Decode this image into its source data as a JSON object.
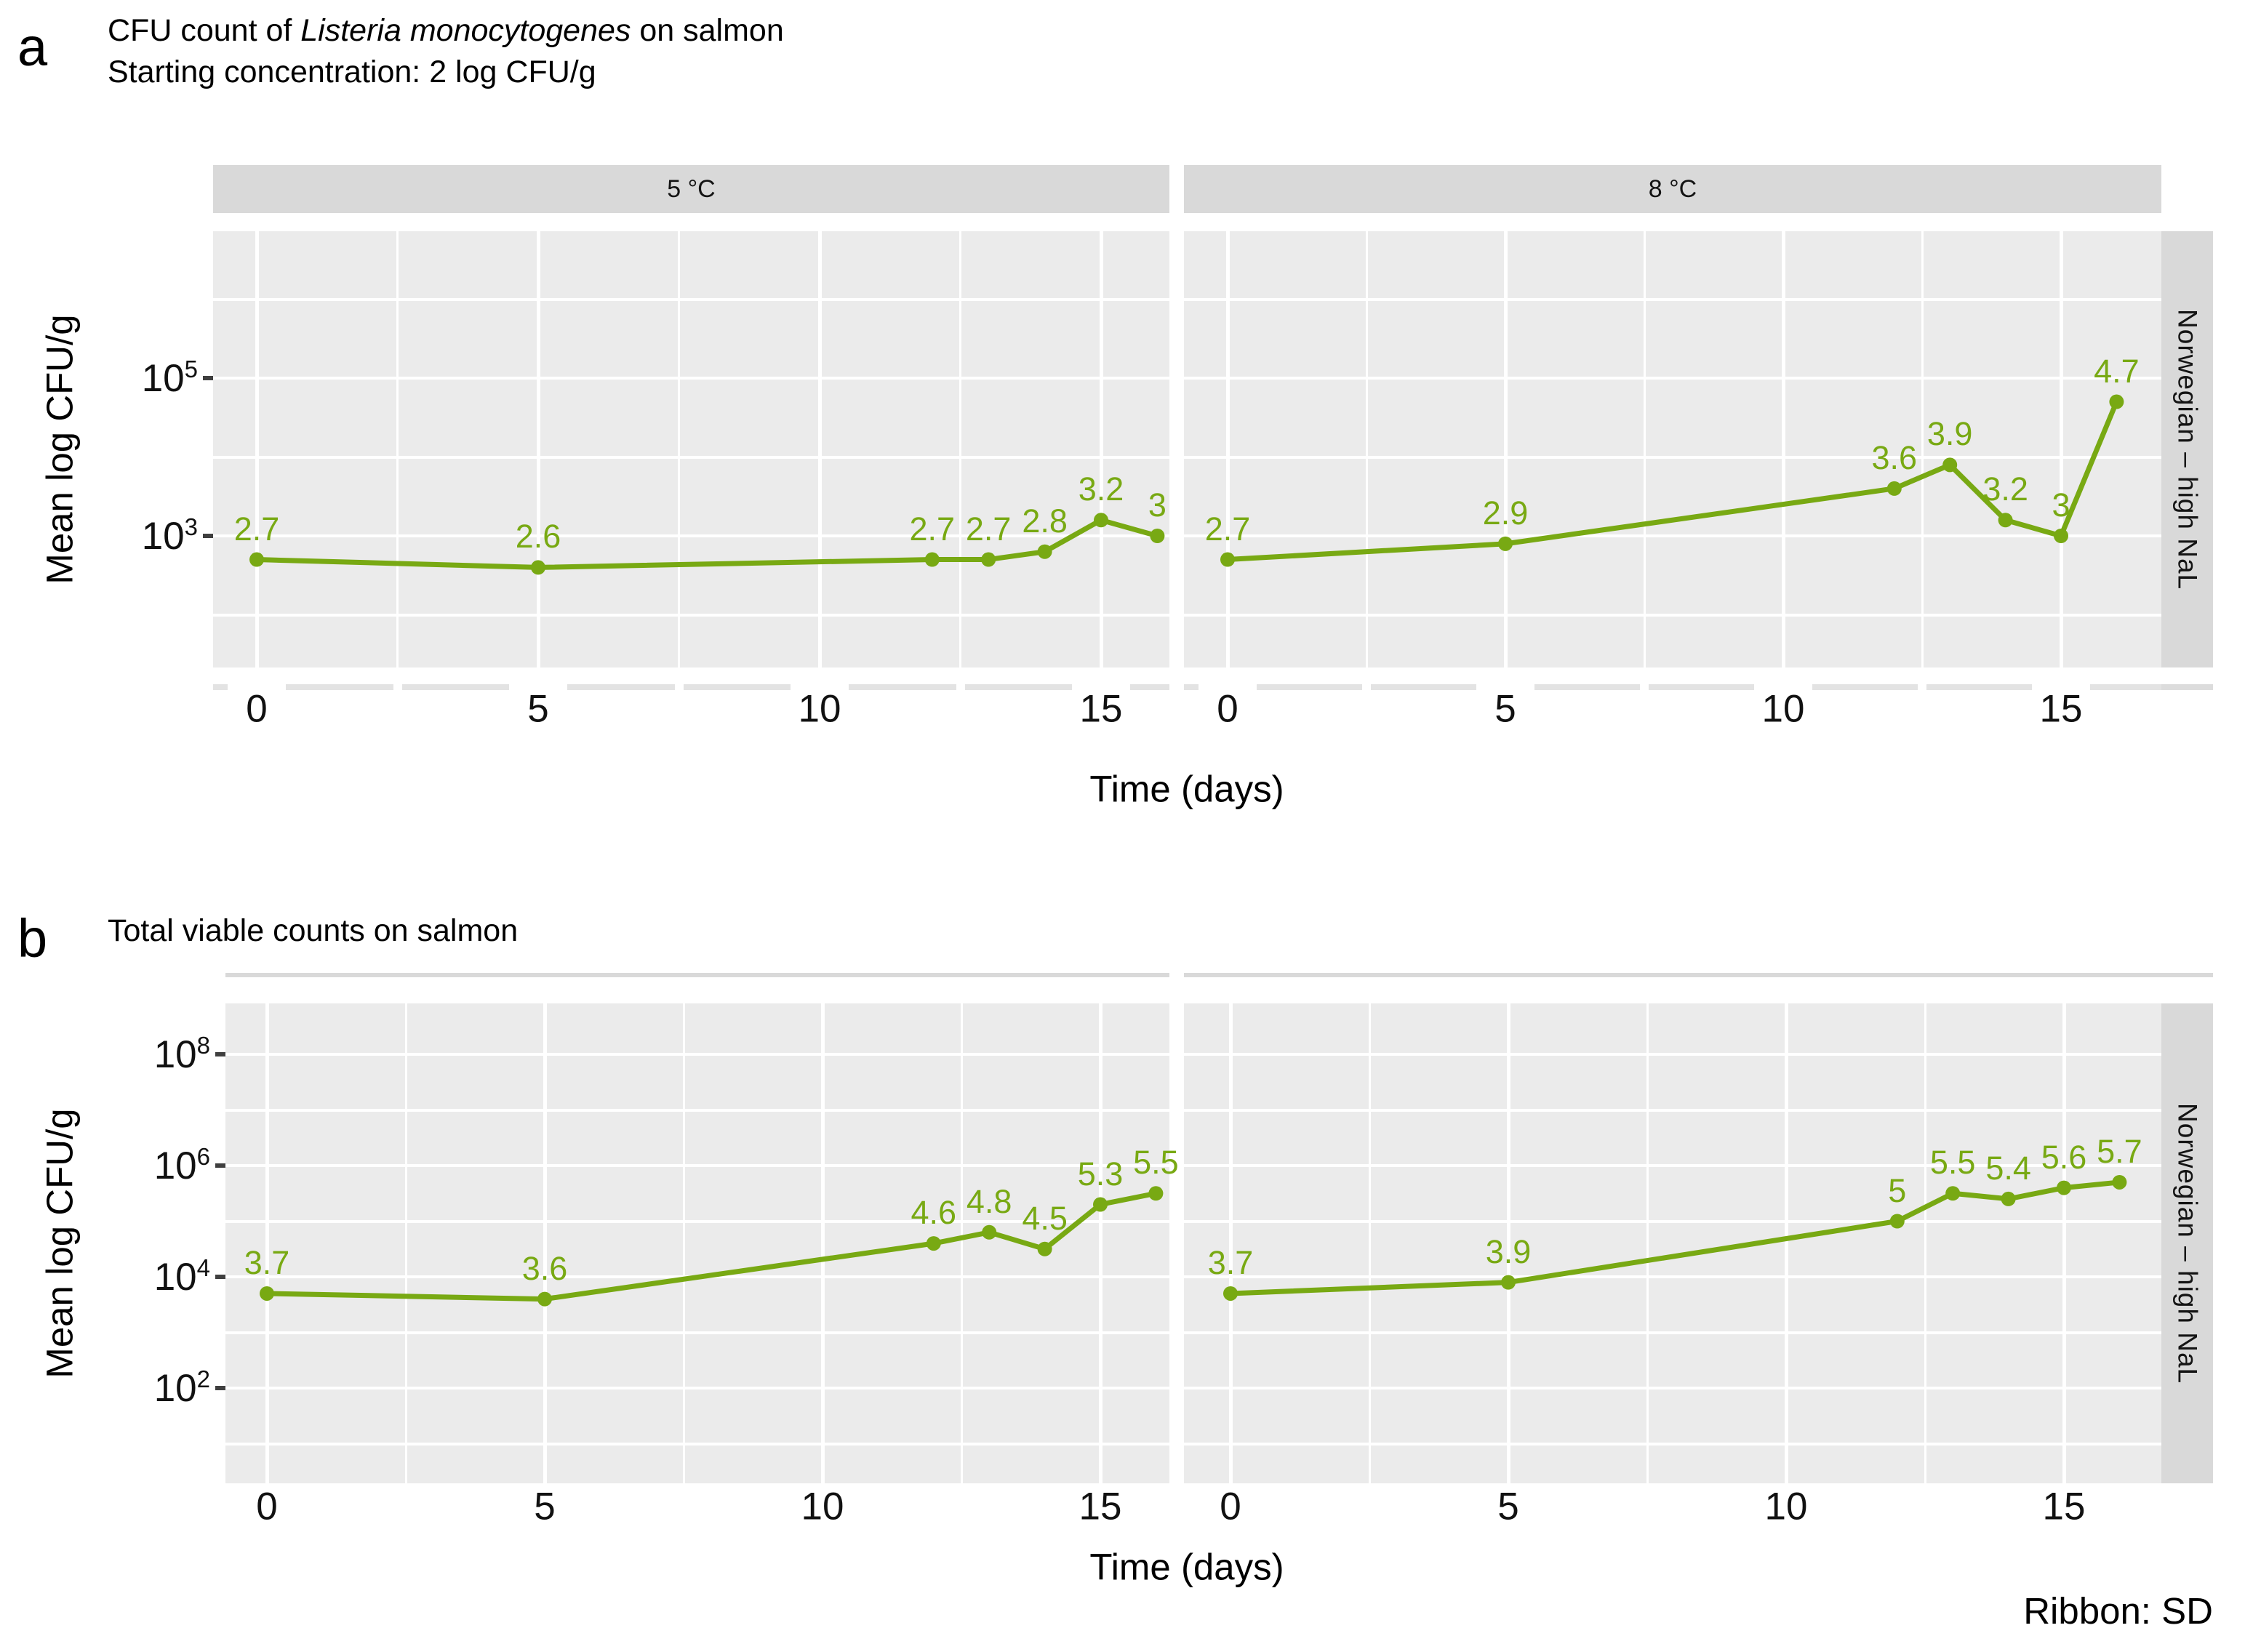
{
  "figure": {
    "panel_a": {
      "letter": "a",
      "title_prefix": "CFU count of ",
      "title_italic": "Listeria monocytogenes",
      "title_suffix": " on salmon",
      "subtitle": "Starting concentration: 2 log CFU/g"
    },
    "panel_b": {
      "letter": "b"
    },
    "caption": "Ribbon: SD"
  },
  "chart_data": [
    {
      "type": "line",
      "title": "CFU count of Listeria monocytogenes on salmon",
      "subtitle": "Starting concentration: 2 log CFU/g",
      "xlabel": "Time (days)",
      "ylabel": "Mean log CFU/g",
      "group": "Norwegian – high NaL",
      "yscale": "log10 CFU/g (values given as log10)",
      "color": "#78A913",
      "ribbon": "SD",
      "x": [
        0,
        5,
        12,
        13,
        14,
        15,
        16
      ],
      "xticks": [
        "0",
        "5",
        "10",
        "15"
      ],
      "yticks": [
        {
          "base": "10",
          "exp": "5",
          "log": 5
        },
        {
          "base": "10",
          "exp": "3",
          "log": 3
        }
      ],
      "facets": [
        {
          "name": "5 °C",
          "values_log": [
            2.7,
            2.6,
            2.7,
            2.7,
            2.8,
            3.2,
            3.0
          ],
          "point_labels": [
            "2.7",
            "2.6",
            "2.7",
            "2.7",
            "2.8",
            "3.2",
            "3"
          ]
        },
        {
          "name": "8 °C",
          "values_log": [
            2.7,
            2.9,
            3.6,
            3.9,
            3.2,
            3.0,
            4.7
          ],
          "point_labels": [
            "2.7",
            "2.9",
            "3.6",
            "3.9",
            "3.2",
            "3",
            "4.7"
          ]
        }
      ]
    },
    {
      "type": "line",
      "title": "Total viable counts on salmon",
      "xlabel": "Time (days)",
      "ylabel": "Mean log CFU/g",
      "group": "Norwegian – high NaL",
      "yscale": "log10 CFU/g (values given as log10)",
      "color": "#78A913",
      "ribbon": "SD",
      "strip_labels_visible": false,
      "x": [
        0,
        5,
        12,
        13,
        14,
        15,
        16
      ],
      "xticks": [
        "0",
        "5",
        "10",
        "15"
      ],
      "yticks": [
        {
          "base": "10",
          "exp": "8",
          "log": 8
        },
        {
          "base": "10",
          "exp": "6",
          "log": 6
        },
        {
          "base": "10",
          "exp": "4",
          "log": 4
        },
        {
          "base": "10",
          "exp": "2",
          "log": 2
        }
      ],
      "facets": [
        {
          "name": "5 °C",
          "values_log": [
            3.7,
            3.6,
            4.6,
            4.8,
            4.5,
            5.3,
            5.5
          ],
          "point_labels": [
            "3.7",
            "3.6",
            "4.6",
            "4.8",
            "4.5",
            "5.3",
            "5.5"
          ]
        },
        {
          "name": "8 °C",
          "values_log": [
            3.7,
            3.9,
            5.0,
            5.5,
            5.4,
            5.6,
            5.7
          ],
          "point_labels": [
            "3.7",
            "3.9",
            "5",
            "5.5",
            "5.4",
            "5.6",
            "5.7"
          ]
        }
      ]
    }
  ]
}
